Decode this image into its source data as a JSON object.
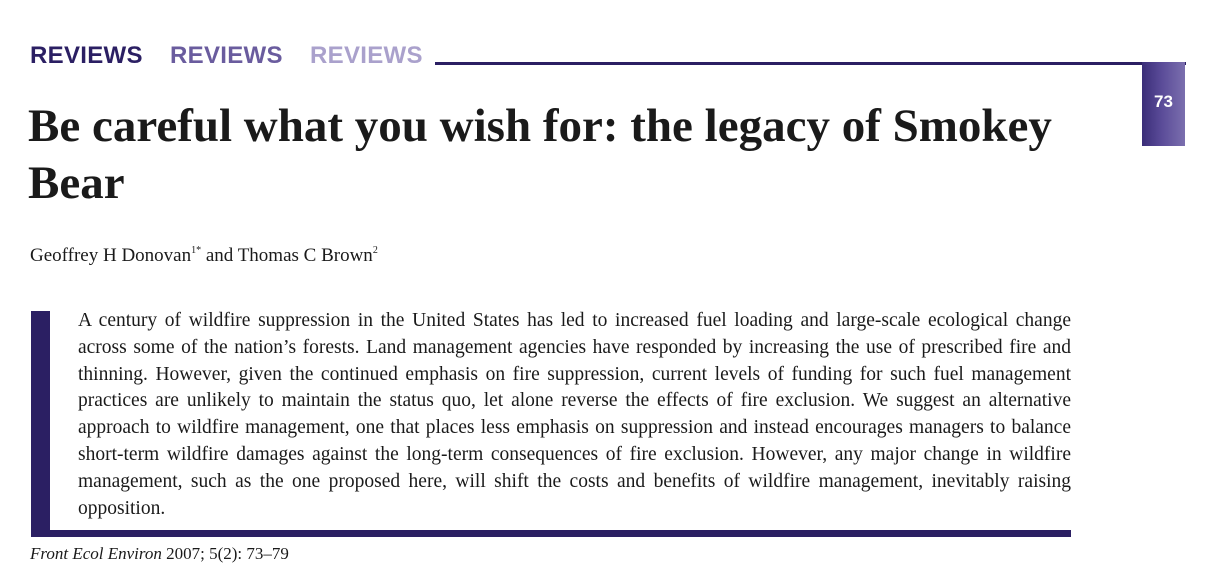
{
  "header": {
    "section_words": [
      "REVIEWS",
      "REVIEWS",
      "REVIEWS"
    ],
    "page_number": "73",
    "colors": {
      "dark": "#2b1f63",
      "medium": "#6a5c9e",
      "light": "#aaa1cc"
    }
  },
  "article": {
    "title": "Be careful what you wish for: the legacy of Smokey Bear",
    "authors": [
      {
        "name": "Geoffrey H Donovan",
        "affiliation": "1*"
      },
      {
        "name": "Thomas C Brown",
        "affiliation": "2"
      }
    ],
    "author_separator": " and ",
    "abstract": "A century of wildfire suppression in the United States has led to increased fuel loading and large-scale ecological change across some of the nation’s forests. Land management agencies have responded by increasing the use of prescribed fire and thinning. However, given the continued emphasis on fire suppression, current levels of funding for such fuel management practices are unlikely to maintain the status quo, let alone reverse the effects of fire exclusion. We suggest an alternative approach to wildfire management, one that places less emphasis on suppression and instead encourages managers to balance short-term wildfire damages against the long-term consequences of fire exclusion. However, any major change in wildfire management, such as the one proposed here, will shift the costs and benefits of wildfire management, inevitably raising opposition."
  },
  "citation": {
    "journal": "Front Ecol Environ",
    "details": " 2007; 5(2): 73–79"
  }
}
